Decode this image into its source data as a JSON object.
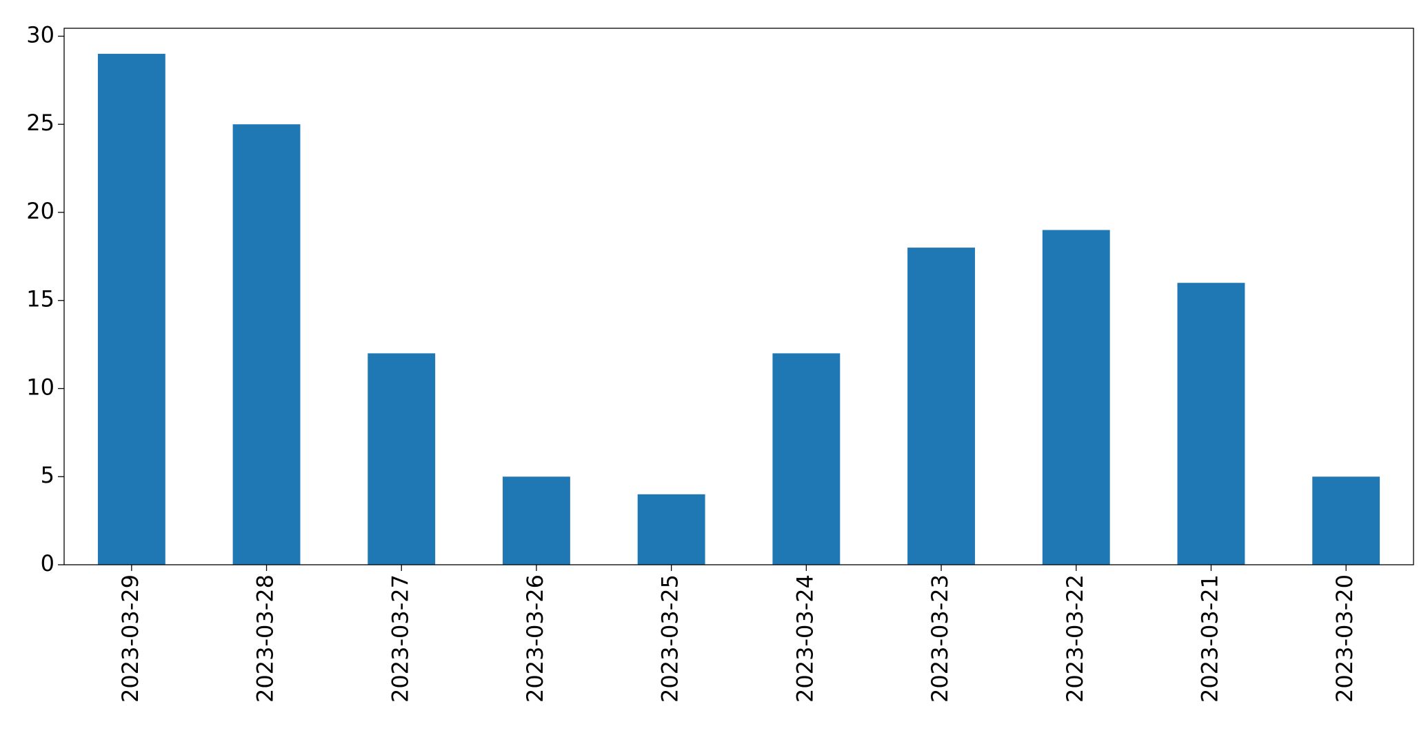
{
  "chart_data": {
    "type": "bar",
    "categories": [
      "2023-03-29",
      "2023-03-28",
      "2023-03-27",
      "2023-03-26",
      "2023-03-25",
      "2023-03-24",
      "2023-03-23",
      "2023-03-22",
      "2023-03-21",
      "2023-03-20"
    ],
    "values": [
      29,
      25,
      12,
      5,
      4,
      12,
      18,
      19,
      16,
      5
    ],
    "color": "#1f77b4",
    "ylim": [
      0,
      30.45
    ],
    "yticks": [
      0,
      5,
      10,
      15,
      20,
      25,
      30
    ],
    "grid": false
  }
}
